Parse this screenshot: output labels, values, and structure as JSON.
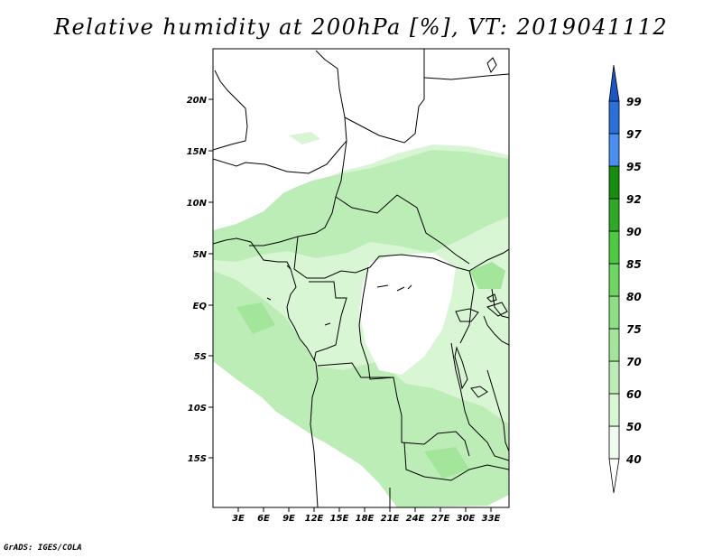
{
  "title": "Relative humidity at 200hPa [%], VT: 2019041112",
  "credit": "GrADS: IGES/COLA",
  "map": {
    "lat_labels": [
      "20N",
      "15N",
      "10N",
      "5N",
      "EQ",
      "5S",
      "10S",
      "15S"
    ],
    "lon_labels": [
      "3E",
      "6E",
      "9E",
      "12E",
      "15E",
      "18E",
      "21E",
      "24E",
      "27E",
      "30E",
      "33E"
    ]
  },
  "colorbar": {
    "levels": [
      "40",
      "50",
      "60",
      "70",
      "75",
      "80",
      "85",
      "90",
      "92",
      "95",
      "97",
      "99"
    ],
    "colors": [
      "#f0fbf0",
      "#d8f5d4",
      "#bdedb7",
      "#a3e59b",
      "#8edf84",
      "#6fd663",
      "#4ec942",
      "#2fa825",
      "#1e9a18",
      "#168c10",
      "#4a8ff0",
      "#2c6fd8",
      "#1c55c4"
    ]
  }
}
